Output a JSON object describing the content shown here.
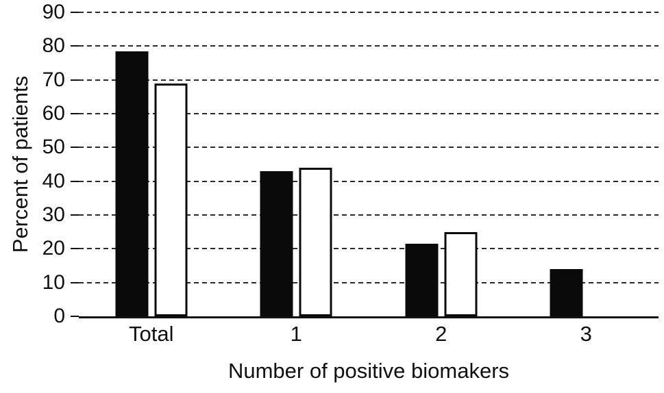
{
  "chart_data": {
    "type": "bar",
    "title": "",
    "xlabel": "Number of positive biomakers",
    "ylabel": "Percent of patients",
    "categories": [
      "Total",
      "1",
      "2",
      "3"
    ],
    "series": [
      {
        "name": "black",
        "color": "#0a0a0a",
        "fill": "solid",
        "values": [
          78.5,
          43,
          21.5,
          14
        ]
      },
      {
        "name": "white",
        "color": "#ffffff",
        "fill": "outline",
        "values": [
          69,
          44,
          25,
          null
        ]
      }
    ],
    "ylim": [
      0,
      90
    ],
    "yticks": [
      0,
      10,
      20,
      30,
      40,
      50,
      60,
      70,
      80,
      90
    ],
    "grid": "horizontal-dashed",
    "legend": "none"
  }
}
